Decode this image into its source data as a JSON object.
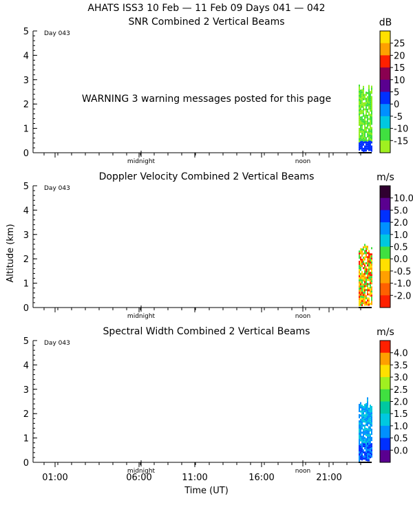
{
  "header": {
    "title": "AHATS ISS3  10 Feb — 11 Feb 09 Days 041 — 042"
  },
  "warning": "WARNING  3 warning messages posted for this page",
  "shared": {
    "ylabel": "Altitude (km)",
    "xlabel": "Time (UT)",
    "day_label": "Day 043",
    "marker_midnight": "midnight",
    "marker_noon": "noon",
    "x_ticks": [
      "01:00",
      "06:00",
      "11:00",
      "16:00",
      "21:00"
    ],
    "y_ticks": [
      "0",
      "1",
      "2",
      "3",
      "4",
      "5"
    ]
  },
  "chart_data": [
    {
      "type": "heatmap",
      "title": "SNR Combined 2 Vertical Beams",
      "ylim": [
        0,
        5
      ],
      "units": "dB",
      "colorbar": {
        "labels": [
          "25",
          "20",
          "15",
          "10",
          "5",
          "0",
          "-5",
          "-10",
          "-15"
        ],
        "colors": [
          "#ffe000",
          "#ffa000",
          "#ff2000",
          "#8a0050",
          "#5a0090",
          "#0030ff",
          "#0090ff",
          "#00c8e0",
          "#40e040",
          "#a0f020"
        ]
      },
      "data_region": {
        "time_start": "23:00",
        "time_end": "00:00",
        "altitude_top_km": 2.8,
        "dominant_colors": [
          "#90f020",
          "#40e040",
          "#0030ff"
        ]
      }
    },
    {
      "type": "heatmap",
      "title": "Doppler Velocity Combined 2 Vertical Beams",
      "ylim": [
        0,
        5
      ],
      "units": "m/s",
      "colorbar": {
        "labels": [
          "10.0",
          "5.0",
          "2.0",
          "1.0",
          "0.5",
          "0.0",
          "-0.5",
          "-1.0",
          "-2.0"
        ],
        "colors": [
          "#300030",
          "#5a0090",
          "#0030ff",
          "#0090ff",
          "#00c8e0",
          "#40e040",
          "#ffe000",
          "#ffa000",
          "#ff6000",
          "#ff2000"
        ]
      },
      "data_region": {
        "time_start": "23:00",
        "time_end": "00:00",
        "altitude_top_km": 2.7,
        "dominant_colors": [
          "#ffe000",
          "#ffa000",
          "#40e040",
          "#ff2000"
        ]
      }
    },
    {
      "type": "heatmap",
      "title": "Spectral Width Combined 2 Vertical Beams",
      "ylim": [
        0,
        5
      ],
      "units": "m/s",
      "colorbar": {
        "labels": [
          "4.0",
          "3.5",
          "3.0",
          "2.5",
          "2.0",
          "1.5",
          "1.0",
          "0.5",
          "0.0"
        ],
        "colors": [
          "#ff2000",
          "#ffa000",
          "#ffe000",
          "#a0f020",
          "#40e040",
          "#00c8a0",
          "#00c8e0",
          "#0090ff",
          "#0030ff",
          "#5a0090"
        ]
      },
      "data_region": {
        "time_start": "23:00",
        "time_end": "00:00",
        "altitude_top_km": 2.7,
        "dominant_colors": [
          "#0090ff",
          "#00c8e0",
          "#0030ff"
        ]
      }
    }
  ]
}
